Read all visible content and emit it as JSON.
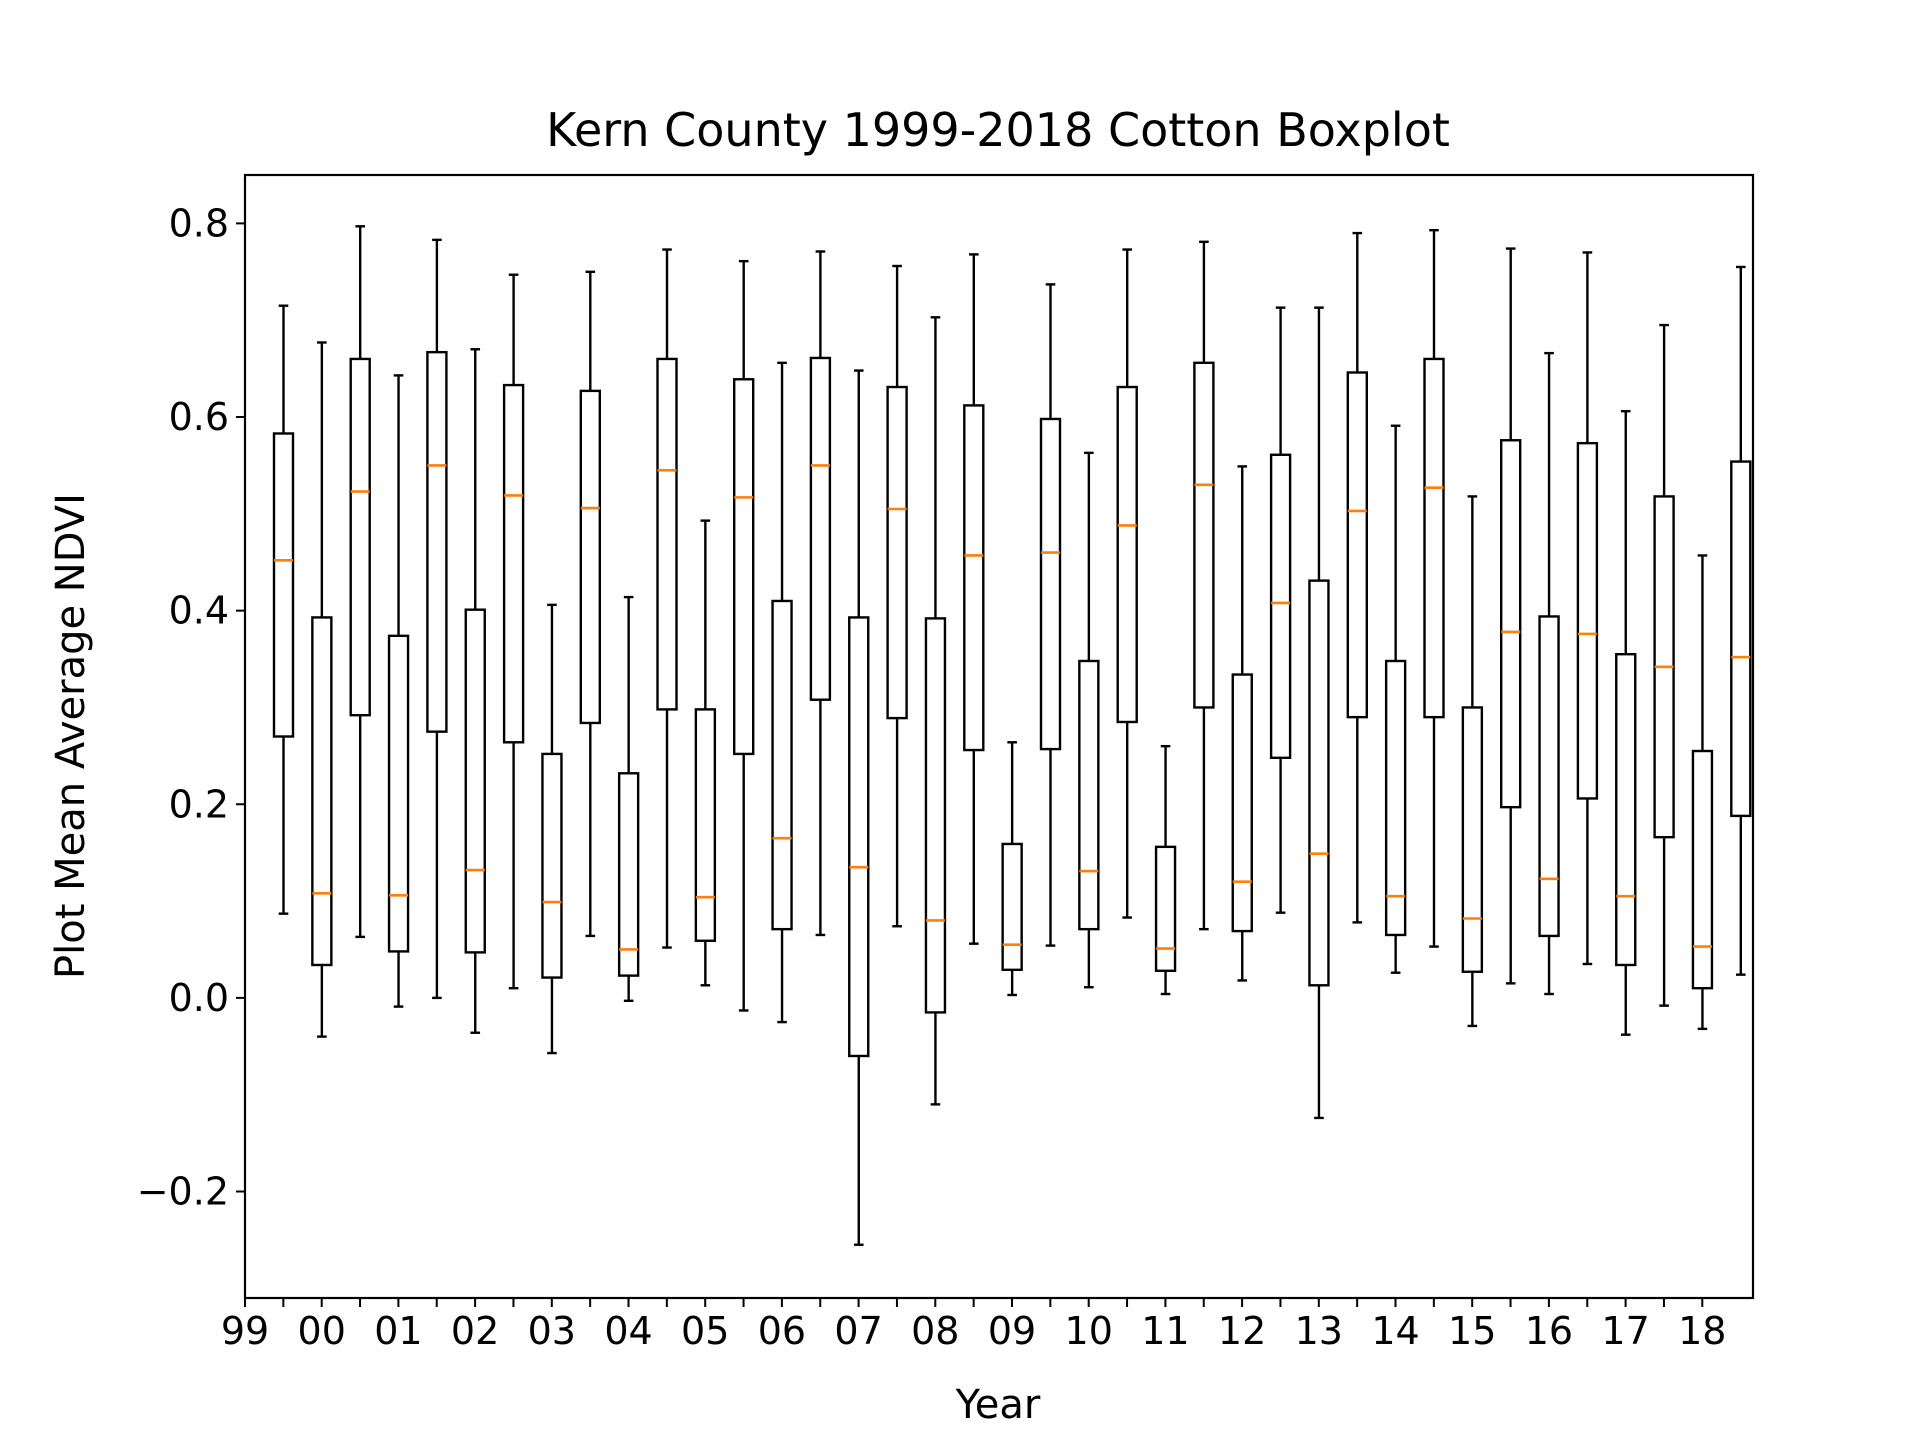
{
  "chart_data": {
    "type": "boxplot",
    "title": "Kern County 1999-2018 Cotton Boxplot",
    "xlabel": "Year",
    "ylabel": "Plot Mean Average NDVI",
    "ylim": [
      -0.31,
      0.85
    ],
    "yticks": [
      -0.2,
      0.0,
      0.2,
      0.4,
      0.6,
      0.8
    ],
    "ytick_labels": [
      "−0.2",
      "0.0",
      "0.2",
      "0.4",
      "0.6",
      "0.8"
    ],
    "xtick_labels": [
      "99",
      "00",
      "01",
      "02",
      "03",
      "04",
      "05",
      "06",
      "07",
      "08",
      "09",
      "10",
      "11",
      "12",
      "13",
      "14",
      "15",
      "16",
      "17",
      "18"
    ],
    "grid": false,
    "legend": "none",
    "colors": {
      "box": "#000000",
      "median": "#ff7f0e"
    },
    "boxes": [
      {
        "whislo": 0.087,
        "q1": 0.27,
        "med": 0.452,
        "q3": 0.583,
        "whishi": 0.715
      },
      {
        "whislo": -0.04,
        "q1": 0.034,
        "med": 0.108,
        "q3": 0.393,
        "whishi": 0.677
      },
      {
        "whislo": 0.063,
        "q1": 0.292,
        "med": 0.523,
        "q3": 0.66,
        "whishi": 0.797
      },
      {
        "whislo": -0.009,
        "q1": 0.048,
        "med": 0.106,
        "q3": 0.374,
        "whishi": 0.643
      },
      {
        "whislo": 0.0,
        "q1": 0.275,
        "med": 0.55,
        "q3": 0.667,
        "whishi": 0.783
      },
      {
        "whislo": -0.036,
        "q1": 0.047,
        "med": 0.132,
        "q3": 0.401,
        "whishi": 0.67
      },
      {
        "whislo": 0.01,
        "q1": 0.264,
        "med": 0.519,
        "q3": 0.633,
        "whishi": 0.747
      },
      {
        "whislo": -0.057,
        "q1": 0.021,
        "med": 0.099,
        "q3": 0.252,
        "whishi": 0.406
      },
      {
        "whislo": 0.064,
        "q1": 0.284,
        "med": 0.506,
        "q3": 0.627,
        "whishi": 0.75
      },
      {
        "whislo": -0.003,
        "q1": 0.023,
        "med": 0.05,
        "q3": 0.232,
        "whishi": 0.414
      },
      {
        "whislo": 0.052,
        "q1": 0.298,
        "med": 0.545,
        "q3": 0.66,
        "whishi": 0.773
      },
      {
        "whislo": 0.013,
        "q1": 0.059,
        "med": 0.104,
        "q3": 0.298,
        "whishi": 0.493
      },
      {
        "whislo": -0.013,
        "q1": 0.252,
        "med": 0.517,
        "q3": 0.639,
        "whishi": 0.761
      },
      {
        "whislo": -0.025,
        "q1": 0.071,
        "med": 0.165,
        "q3": 0.41,
        "whishi": 0.656
      },
      {
        "whislo": 0.065,
        "q1": 0.308,
        "med": 0.55,
        "q3": 0.661,
        "whishi": 0.771
      },
      {
        "whislo": -0.255,
        "q1": -0.06,
        "med": 0.135,
        "q3": 0.393,
        "whishi": 0.648
      },
      {
        "whislo": 0.074,
        "q1": 0.289,
        "med": 0.505,
        "q3": 0.631,
        "whishi": 0.756
      },
      {
        "whislo": -0.11,
        "q1": -0.015,
        "med": 0.08,
        "q3": 0.392,
        "whishi": 0.703
      },
      {
        "whislo": 0.056,
        "q1": 0.256,
        "med": 0.457,
        "q3": 0.612,
        "whishi": 0.768
      },
      {
        "whislo": 0.003,
        "q1": 0.029,
        "med": 0.055,
        "q3": 0.159,
        "whishi": 0.264
      },
      {
        "whislo": 0.054,
        "q1": 0.257,
        "med": 0.46,
        "q3": 0.598,
        "whishi": 0.737
      },
      {
        "whislo": 0.011,
        "q1": 0.071,
        "med": 0.131,
        "q3": 0.348,
        "whishi": 0.563
      },
      {
        "whislo": 0.083,
        "q1": 0.285,
        "med": 0.488,
        "q3": 0.631,
        "whishi": 0.773
      },
      {
        "whislo": 0.004,
        "q1": 0.028,
        "med": 0.051,
        "q3": 0.156,
        "whishi": 0.26
      },
      {
        "whislo": 0.071,
        "q1": 0.3,
        "med": 0.53,
        "q3": 0.656,
        "whishi": 0.781
      },
      {
        "whislo": 0.018,
        "q1": 0.069,
        "med": 0.12,
        "q3": 0.334,
        "whishi": 0.549
      },
      {
        "whislo": 0.088,
        "q1": 0.248,
        "med": 0.408,
        "q3": 0.561,
        "whishi": 0.713
      },
      {
        "whislo": -0.124,
        "q1": 0.013,
        "med": 0.149,
        "q3": 0.431,
        "whishi": 0.713
      },
      {
        "whislo": 0.078,
        "q1": 0.29,
        "med": 0.503,
        "q3": 0.646,
        "whishi": 0.79
      },
      {
        "whislo": 0.026,
        "q1": 0.065,
        "med": 0.105,
        "q3": 0.348,
        "whishi": 0.591
      },
      {
        "whislo": 0.053,
        "q1": 0.29,
        "med": 0.527,
        "q3": 0.66,
        "whishi": 0.793
      },
      {
        "whislo": -0.029,
        "q1": 0.027,
        "med": 0.082,
        "q3": 0.3,
        "whishi": 0.518
      },
      {
        "whislo": 0.015,
        "q1": 0.197,
        "med": 0.378,
        "q3": 0.576,
        "whishi": 0.774
      },
      {
        "whislo": 0.004,
        "q1": 0.064,
        "med": 0.123,
        "q3": 0.394,
        "whishi": 0.666
      },
      {
        "whislo": 0.035,
        "q1": 0.206,
        "med": 0.376,
        "q3": 0.573,
        "whishi": 0.77
      },
      {
        "whislo": -0.038,
        "q1": 0.034,
        "med": 0.105,
        "q3": 0.355,
        "whishi": 0.606
      },
      {
        "whislo": -0.008,
        "q1": 0.166,
        "med": 0.342,
        "q3": 0.518,
        "whishi": 0.695
      },
      {
        "whislo": -0.032,
        "q1": 0.01,
        "med": 0.053,
        "q3": 0.255,
        "whishi": 0.457
      },
      {
        "whislo": 0.024,
        "q1": 0.188,
        "med": 0.352,
        "q3": 0.554,
        "whishi": 0.755
      }
    ]
  }
}
